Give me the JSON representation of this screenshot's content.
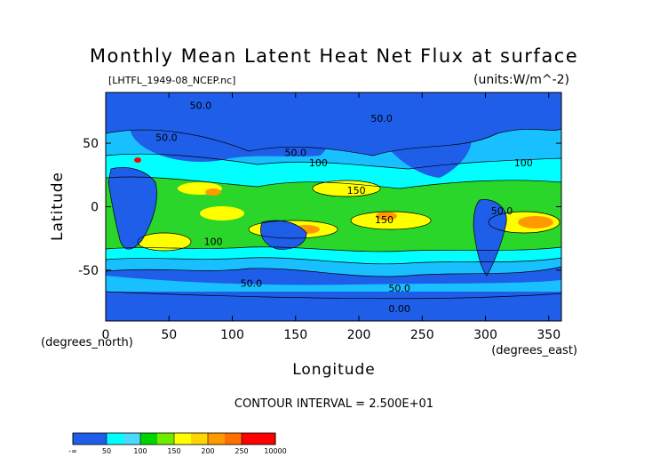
{
  "chart_data": {
    "type": "heatmap",
    "title": "Monthly Mean Latent Heat Net Flux at surface",
    "subtitle_left": "[LHTFL_1949-08_NCEP.nc]",
    "subtitle_right": "(units:W/m^-2)",
    "xlabel": "Longitude",
    "ylabel": "Latitude",
    "x_unit_label": "(degrees_east)",
    "y_unit_label": "(degrees_north)",
    "xlim": [
      0,
      360
    ],
    "ylim": [
      -90,
      90
    ],
    "x_ticks": [
      "0",
      "50",
      "100",
      "150",
      "200",
      "250",
      "300",
      "350"
    ],
    "x_tick_values": [
      0,
      50,
      100,
      150,
      200,
      250,
      300,
      350
    ],
    "y_ticks": [
      "50",
      "0",
      "-50"
    ],
    "y_tick_values": [
      50,
      0,
      -50
    ],
    "contour_interval_text": "CONTOUR INTERVAL = 2.500E+01",
    "contour_labels": [
      {
        "text": "50.0",
        "lon": 75,
        "lat": 77
      },
      {
        "text": "50.0",
        "lon": 48,
        "lat": 52
      },
      {
        "text": "50.0",
        "lon": 218,
        "lat": 67
      },
      {
        "text": "50.0",
        "lon": 150,
        "lat": 40
      },
      {
        "text": "100",
        "lon": 168,
        "lat": 32
      },
      {
        "text": "100",
        "lon": 330,
        "lat": 32
      },
      {
        "text": "150",
        "lon": 198,
        "lat": 10
      },
      {
        "text": "150",
        "lon": 220,
        "lat": -13
      },
      {
        "text": "100",
        "lon": 85,
        "lat": -30
      },
      {
        "text": "50.0",
        "lon": 115,
        "lat": -63
      },
      {
        "text": "50.0",
        "lon": 232,
        "lat": -67
      },
      {
        "text": "0.00",
        "lon": 232,
        "lat": -83
      },
      {
        "text": "50.0",
        "lon": 313,
        "lat": -6
      }
    ],
    "colorbar": {
      "labels": [
        "-∞",
        "50",
        "100",
        "150",
        "200",
        "250",
        "10000"
      ],
      "colors": [
        "#1e5ee9",
        "#1e5ee9",
        "#00ffff",
        "#49dbff",
        "#00d400",
        "#6fec00",
        "#ffff00",
        "#ffd400",
        "#ff9900",
        "#ff6f00",
        "#ff0000",
        "#ff0000"
      ]
    },
    "level_colors": {
      "below_50": "#1e5ee9",
      "50_75": "#19c0ff",
      "75_100": "#00ffff",
      "100_125": "#2ad62a",
      "125_150": "#6fec00",
      "150_175": "#ffff00",
      "175_200": "#ffd400",
      "200_250": "#ff9900",
      "above_250": "#ff0000"
    }
  }
}
